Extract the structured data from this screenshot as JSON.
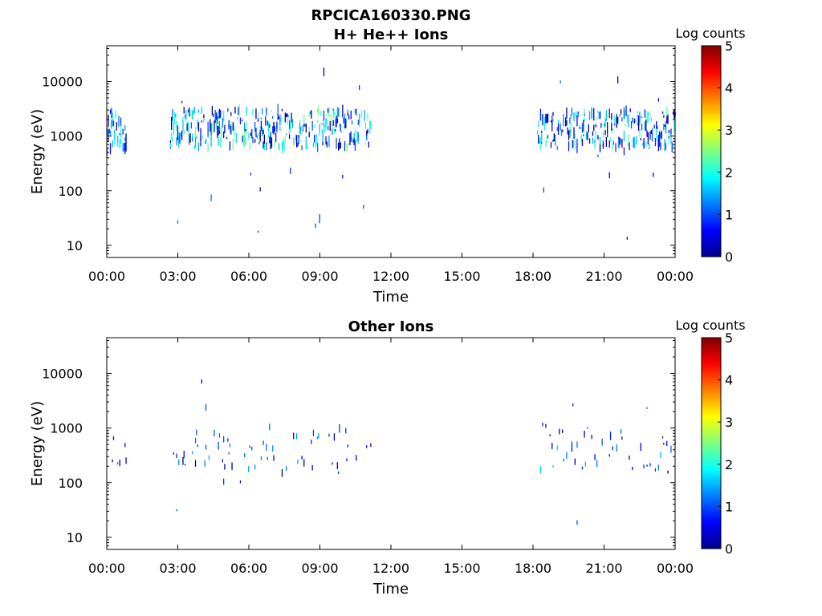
{
  "figure": {
    "title": "RPCICA160330.PNG"
  },
  "chart_data": [
    {
      "type": "heatmap",
      "title": "H+ He++ Ions",
      "xlabel": "Time",
      "ylabel": "Energy (eV)",
      "x_ticks": [
        "00:00",
        "03:00",
        "06:00",
        "09:00",
        "12:00",
        "15:00",
        "18:00",
        "21:00",
        "00:00"
      ],
      "x_range_hours": [
        0,
        24
      ],
      "y_ticks": [
        "10",
        "100",
        "1000",
        "10000"
      ],
      "y_tick_values": [
        10,
        100,
        1000,
        10000
      ],
      "y_scale": "log",
      "ylim": [
        6,
        45000
      ],
      "colorbar": {
        "label": "Log counts",
        "range": [
          0,
          5
        ],
        "ticks": [
          "0",
          "1",
          "2",
          "3",
          "4",
          "5"
        ]
      },
      "data_coverage": [
        {
          "start": "00:00",
          "end": "00:50",
          "dominant_energy_eV": [
            500,
            3000
          ],
          "log_counts_max": 2.2
        },
        {
          "start": "02:40",
          "end": "11:10",
          "dominant_energy_eV": [
            600,
            3000
          ],
          "log_counts_max": 2.6
        },
        {
          "start": "18:10",
          "end": "24:00",
          "dominant_energy_eV": [
            600,
            3000
          ],
          "log_counts_max": 2.4
        }
      ],
      "no_data_interval": [
        "11:10",
        "18:10"
      ]
    },
    {
      "type": "heatmap",
      "title": "Other Ions",
      "xlabel": "Time",
      "ylabel": "Energy (eV)",
      "x_ticks": [
        "00:00",
        "03:00",
        "06:00",
        "09:00",
        "12:00",
        "15:00",
        "18:00",
        "21:00",
        "00:00"
      ],
      "x_range_hours": [
        0,
        24
      ],
      "y_ticks": [
        "10",
        "100",
        "1000",
        "10000"
      ],
      "y_tick_values": [
        10,
        100,
        1000,
        10000
      ],
      "y_scale": "log",
      "ylim": [
        6,
        45000
      ],
      "colorbar": {
        "label": "Log counts",
        "range": [
          0,
          5
        ],
        "ticks": [
          "0",
          "1",
          "2",
          "3",
          "4",
          "5"
        ]
      },
      "data_coverage": [
        {
          "start": "00:00",
          "end": "00:50",
          "dominant_energy_eV": [
            200,
            1000
          ],
          "log_counts_max": 1.2
        },
        {
          "start": "02:40",
          "end": "11:10",
          "dominant_energy_eV": [
            150,
            1200
          ],
          "log_counts_max": 1.5
        },
        {
          "start": "18:10",
          "end": "24:00",
          "dominant_energy_eV": [
            150,
            1200
          ],
          "log_counts_max": 1.7
        }
      ],
      "no_data_interval": [
        "11:10",
        "18:10"
      ]
    }
  ]
}
